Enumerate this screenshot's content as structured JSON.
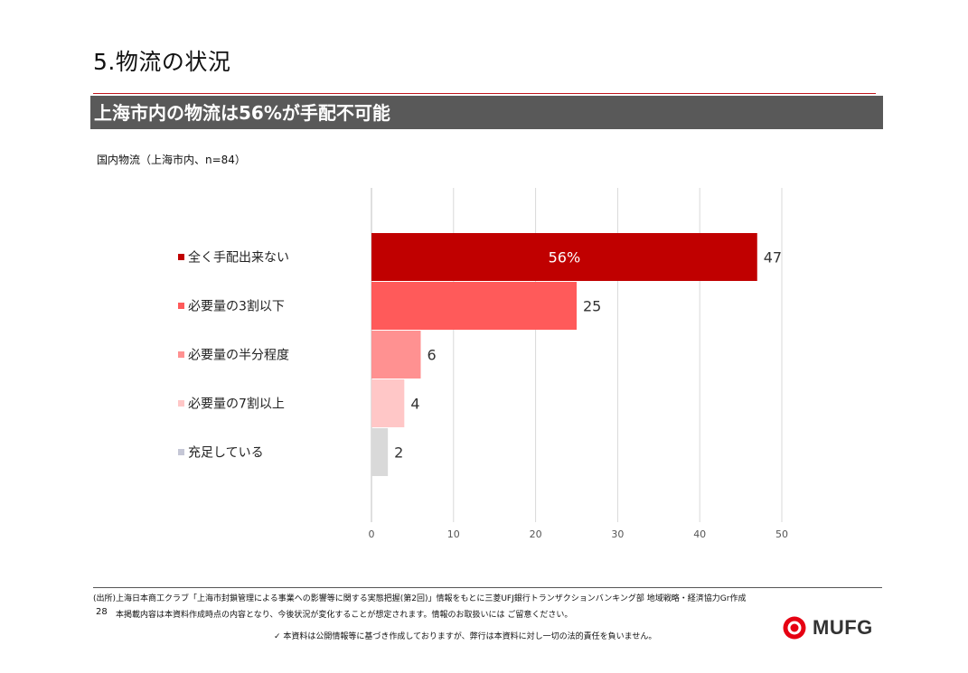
{
  "slide": {
    "title": "5.物流の状況",
    "banner": "上海市内の物流は56%が手配不可能"
  },
  "chart_data": {
    "type": "bar",
    "orientation": "horizontal",
    "title": "国内物流（上海市内、n=84）",
    "categories": [
      "全く手配出来ない",
      "必要量の3割以下",
      "必要量の半分程度",
      "必要量の7割以上",
      "充足している"
    ],
    "values": [
      47,
      25,
      6,
      4,
      2
    ],
    "colors": [
      "#c00000",
      "#ff5a5a",
      "#ff9191",
      "#ffc7c7",
      "#d9d9d9"
    ],
    "marker_colors": [
      "#c00000",
      "#ff5a5a",
      "#ff9191",
      "#ffc7c7",
      "#c5c7d6"
    ],
    "annotation": "56%",
    "annotation_bar_index": 0,
    "xlim": [
      0,
      50
    ],
    "xticks": [
      0,
      10,
      20,
      30,
      40,
      50
    ],
    "grid": true
  },
  "footer": {
    "source": "(出所)上海日本商工クラブ「上海市封鎖管理による事業への影響等に関する実態把握(第2回)」情報をもとに三菱UFJ銀行トランザクションバンキング部 地域戦略・経済協力Gr作成",
    "page_number": "28",
    "note": "本掲載内容は本資料作成時点の内容となり、今後状況が変化することが想定されます。情報のお取扱いには ご留意ください。",
    "disclaimer": "✓ 本資料は公開情報等に基づき作成しておりますが、弊行は本資料に対し一切の法的責任を負いません。",
    "logo_text": "MUFG",
    "logo_color": "#e60012"
  }
}
